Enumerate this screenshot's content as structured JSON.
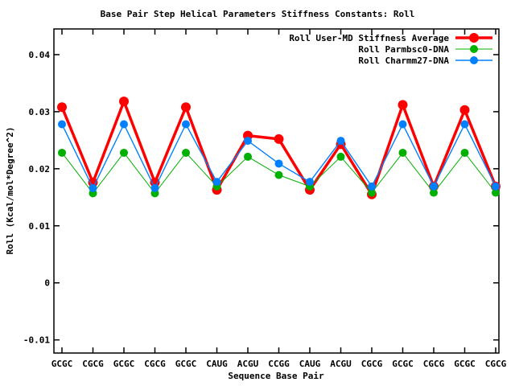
{
  "chart_data": {
    "type": "line",
    "title": "Base Pair Step Helical Parameters Stiffness Constants: Roll",
    "xlabel": "Sequence Base Pair",
    "ylabel": "Roll (Kcal/mol*Degree^2)",
    "grid": false,
    "legend_position": "top-right-inside",
    "ylim": [
      -0.0123,
      0.0445
    ],
    "yticks": [
      -0.01,
      0,
      0.01,
      0.02,
      0.03,
      0.04
    ],
    "ytick_labels": [
      "-0.01",
      "0",
      "0.01",
      "0.02",
      "0.03",
      "0.04"
    ],
    "categories": [
      "GCGC",
      "CGCG",
      "GCGC",
      "CGCG",
      "GCGC",
      "CAUG",
      "ACGU",
      "CCGG",
      "CAUG",
      "ACGU",
      "CGCG",
      "GCGC",
      "CGCG",
      "GCGC",
      "CGCG"
    ],
    "series": [
      {
        "name": "Roll User-MD Stiffness Average",
        "color": "#ff0000",
        "values": [
          0.0308,
          0.0176,
          0.0318,
          0.0176,
          0.0308,
          0.0163,
          0.0258,
          0.0252,
          0.0163,
          0.0243,
          0.0155,
          0.0312,
          0.0169,
          0.0303,
          0.0169
        ]
      },
      {
        "name": "Roll Parmbsc0-DNA",
        "color": "#00b000",
        "values": [
          0.0228,
          0.0157,
          0.0228,
          0.0157,
          0.0228,
          0.0169,
          0.0221,
          0.0189,
          0.0169,
          0.0221,
          0.0158,
          0.0228,
          0.0158,
          0.0228,
          0.0158
        ]
      },
      {
        "name": "Roll Charmm27-DNA",
        "color": "#0080ff",
        "values": [
          0.0278,
          0.0166,
          0.0278,
          0.0166,
          0.0278,
          0.0177,
          0.0249,
          0.0209,
          0.0177,
          0.0249,
          0.0169,
          0.0278,
          0.0169,
          0.0278,
          0.0169
        ]
      }
    ]
  }
}
